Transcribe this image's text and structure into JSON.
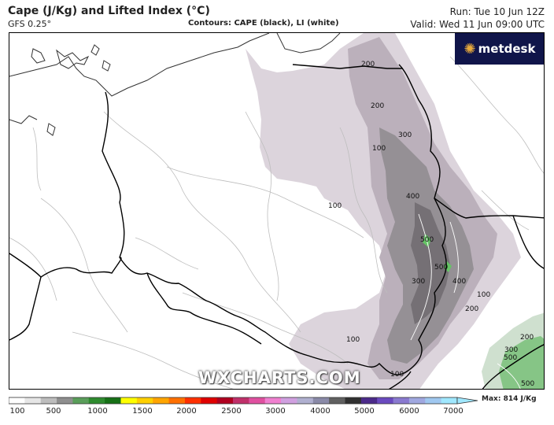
{
  "header": {
    "title": "Cape (J/Kg) and Lifted Index (°C)",
    "model": "GFS 0.25°",
    "contours": "Contours: CAPE (black), LI (white)",
    "run": "Run: Tue 10 Jun 12Z",
    "valid": "Valid: Wed 11 Jun 09:00 UTC"
  },
  "logo": {
    "text": "metdesk",
    "icon": "starburst-icon"
  },
  "watermark": "WXCHARTS.COM",
  "contour_labels": [
    "200",
    "200",
    "300",
    "100",
    "400",
    "100",
    "500",
    "500",
    "400",
    "300",
    "100",
    "200",
    "100",
    "100",
    "200",
    "300",
    "500",
    "500"
  ],
  "colorbar": {
    "ticks": [
      "100",
      "500",
      "1000",
      "1500",
      "2000",
      "2500",
      "3000",
      "4000",
      "5000",
      "6000",
      "7000"
    ],
    "colors": [
      "#ffffff",
      "#e6e6e6",
      "#bdbdbd",
      "#8f8f8f",
      "#5a9e5a",
      "#2e8b2e",
      "#167016",
      "#ffff00",
      "#ffd000",
      "#ffa500",
      "#ff7000",
      "#ff3000",
      "#e00000",
      "#b00020",
      "#c0306a",
      "#e050a0",
      "#f080d0",
      "#d0a0e0",
      "#b0b0d0",
      "#8a8aa8",
      "#606060",
      "#303030",
      "#4b2a8a",
      "#6a4abf",
      "#8a7ad0",
      "#a0a8e0",
      "#a0c8f0",
      "#a0e8ff"
    ],
    "max_label": "Max: 814 J/Kg"
  }
}
